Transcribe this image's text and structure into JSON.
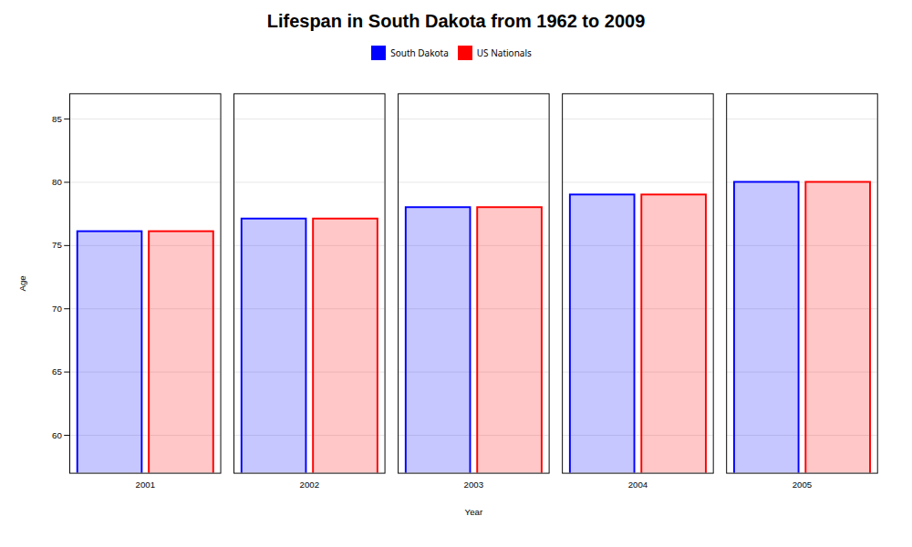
{
  "chart_data": {
    "type": "bar",
    "title": "Lifespan in South Dakota from 1962 to 2009",
    "xlabel": "Year",
    "ylabel": "Age",
    "categories": [
      "2001",
      "2002",
      "2003",
      "2004",
      "2005"
    ],
    "series": [
      {
        "name": "South Dakota",
        "color": "#0000ff",
        "values": [
          76.1,
          77.1,
          78.0,
          79.0,
          80.0
        ]
      },
      {
        "name": "US Nationals",
        "color": "#ff0000",
        "values": [
          76.1,
          77.1,
          78.0,
          79.0,
          80.0
        ]
      }
    ],
    "ylim": [
      57,
      87
    ],
    "yticks": [
      60,
      65,
      70,
      75,
      80,
      85
    ],
    "grid": true,
    "legend": "top"
  }
}
